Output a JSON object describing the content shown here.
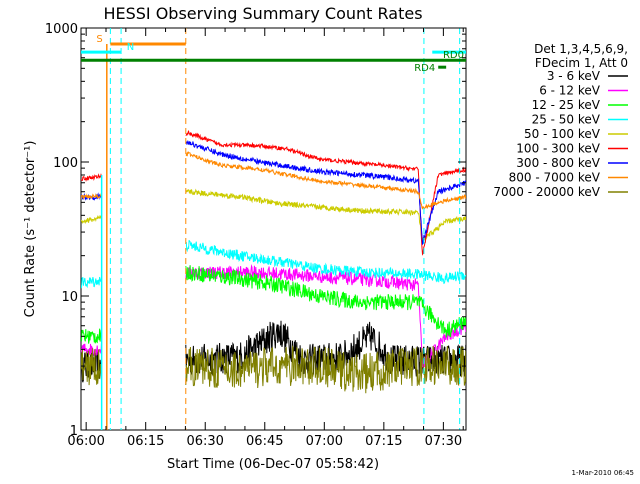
{
  "chart_data": {
    "type": "line",
    "title": "HESSI Observing Summary Count Rates",
    "xlabel": "Start Time (06-Dec-07 05:58:42)",
    "ylabel": "Count Rate (s⁻¹ detector⁻¹)",
    "x_unit": "minutes after 05:58:42",
    "xlim": [
      0,
      97
    ],
    "ylim": [
      1,
      1000
    ],
    "yscale": "log",
    "grid": false,
    "x_ticks": [
      {
        "label": "06:00",
        "value": 1.3
      },
      {
        "label": "06:15",
        "value": 16.3
      },
      {
        "label": "06:30",
        "value": 31.3
      },
      {
        "label": "06:45",
        "value": 46.3
      },
      {
        "label": "07:00",
        "value": 61.3
      },
      {
        "label": "07:15",
        "value": 76.3
      },
      {
        "label": "07:30",
        "value": 91.3
      }
    ],
    "y_ticks": [
      {
        "label": "1",
        "value": 1
      },
      {
        "label": "10",
        "value": 10
      },
      {
        "label": "100",
        "value": 100
      },
      {
        "label": "1000",
        "value": 1000
      }
    ],
    "legend": {
      "placement": "right",
      "header": [
        "Det 1,3,4,5,6,9,",
        "FDecim 1, Att 0"
      ]
    },
    "series": [
      {
        "name": "3 - 6 keV",
        "color": "#000000",
        "noise": 0.12,
        "points": [
          [
            0,
            3
          ],
          [
            5,
            3
          ],
          [
            27,
            3.3
          ],
          [
            40,
            3.5
          ],
          [
            50,
            5.5
          ],
          [
            56,
            3.3
          ],
          [
            66,
            3.5
          ],
          [
            73,
            5
          ],
          [
            78,
            3.3
          ],
          [
            85,
            3.3
          ]
        ]
      },
      {
        "name": "6 - 12 keV",
        "color": "#ff00ff",
        "noise": 0.05,
        "points": [
          [
            0,
            4
          ],
          [
            5,
            4
          ],
          [
            27,
            15
          ],
          [
            45,
            15
          ],
          [
            60,
            14
          ],
          [
            75,
            13
          ],
          [
            85,
            12
          ],
          [
            86,
            3
          ],
          [
            92,
            5
          ],
          [
            97,
            6
          ]
        ]
      },
      {
        "name": "12 - 25 keV",
        "color": "#00ff00",
        "noise": 0.06,
        "points": [
          [
            0,
            5
          ],
          [
            5,
            5
          ],
          [
            27,
            15
          ],
          [
            40,
            13.5
          ],
          [
            50,
            12
          ],
          [
            60,
            10
          ],
          [
            70,
            9
          ],
          [
            85,
            9
          ],
          [
            92,
            5.5
          ],
          [
            97,
            6.5
          ]
        ]
      },
      {
        "name": "25 - 50 keV",
        "color": "#00ffff",
        "noise": 0.04,
        "points": [
          [
            0,
            12.5
          ],
          [
            5,
            13
          ],
          [
            27,
            24
          ],
          [
            40,
            20
          ],
          [
            50,
            18
          ],
          [
            60,
            16
          ],
          [
            72,
            15
          ],
          [
            85,
            14.5
          ],
          [
            92,
            13.5
          ],
          [
            97,
            14.5
          ]
        ]
      },
      {
        "name": "50 - 100 keV",
        "color": "#cccc00",
        "noise": 0.02,
        "points": [
          [
            0,
            36
          ],
          [
            5,
            38
          ],
          [
            27,
            60
          ],
          [
            40,
            55
          ],
          [
            50,
            49
          ],
          [
            60,
            46
          ],
          [
            72,
            43
          ],
          [
            85,
            42
          ],
          [
            86,
            26
          ],
          [
            92,
            36
          ],
          [
            97,
            38
          ]
        ]
      },
      {
        "name": "100 - 300 keV",
        "color": "#ff0000",
        "noise": 0.015,
        "points": [
          [
            0,
            75
          ],
          [
            5,
            78
          ],
          [
            27,
            165
          ],
          [
            35,
            135
          ],
          [
            45,
            132
          ],
          [
            52,
            125
          ],
          [
            60,
            105
          ],
          [
            75,
            95
          ],
          [
            85,
            88
          ],
          [
            86,
            20
          ],
          [
            90,
            80
          ],
          [
            97,
            88
          ]
        ]
      },
      {
        "name": "300 - 800 keV",
        "color": "#0000ff",
        "noise": 0.02,
        "points": [
          [
            0,
            55
          ],
          [
            5,
            55
          ],
          [
            27,
            140
          ],
          [
            35,
            115
          ],
          [
            45,
            100
          ],
          [
            60,
            85
          ],
          [
            75,
            78
          ],
          [
            85,
            72
          ],
          [
            86,
            25
          ],
          [
            90,
            60
          ],
          [
            97,
            70
          ]
        ]
      },
      {
        "name": "800 - 7000 keV",
        "color": "#ff8800",
        "noise": 0.015,
        "points": [
          [
            0,
            55
          ],
          [
            5,
            56
          ],
          [
            27,
            115
          ],
          [
            35,
            95
          ],
          [
            45,
            88
          ],
          [
            60,
            72
          ],
          [
            75,
            65
          ],
          [
            85,
            60
          ],
          [
            86,
            45
          ],
          [
            90,
            50
          ],
          [
            97,
            55
          ]
        ]
      },
      {
        "name": "7000 - 20000 keV",
        "color": "#808000",
        "noise": 0.15,
        "points": [
          [
            0,
            2.9
          ],
          [
            5,
            3
          ],
          [
            27,
            3
          ],
          [
            40,
            2.8
          ],
          [
            50,
            3
          ],
          [
            60,
            3
          ],
          [
            70,
            2.6
          ],
          [
            80,
            2.9
          ],
          [
            85,
            3
          ],
          [
            92,
            3
          ],
          [
            97,
            3
          ]
        ]
      }
    ],
    "flags": [
      {
        "label": "S",
        "color": "#ff8800",
        "x1": 7.4,
        "x2": 26.4,
        "y": 760
      },
      {
        "label": "N",
        "color": "#00ffff",
        "x1": 0,
        "x2": 10,
        "y": 660
      },
      {
        "label": "N",
        "color": "#00ffff",
        "x1": 88.5,
        "x2": 97,
        "y": 660
      },
      {
        "label": "RD0",
        "color": "#008000",
        "x1": 0,
        "x2": 97,
        "y": 575
      },
      {
        "label": "RD4",
        "color": "#008000",
        "x1": 90,
        "x2": 92,
        "y": 510
      }
    ],
    "vlines": [
      {
        "x": 7.4,
        "color": "#00ffff",
        "style": "dashed"
      },
      {
        "x": 10.1,
        "color": "#00ffff",
        "style": "dashed"
      },
      {
        "x": 26.4,
        "color": "#ff8800",
        "style": "dashed"
      },
      {
        "x": 86.4,
        "color": "#00ffff",
        "style": "dashed"
      },
      {
        "x": 95.4,
        "color": "#00ffff",
        "style": "dashed"
      }
    ],
    "annotations": [
      {
        "text": "RD0"
      },
      {
        "text": "RD4"
      }
    ]
  },
  "footer": {
    "timestamp": "1-Mar-2010 06:45"
  }
}
